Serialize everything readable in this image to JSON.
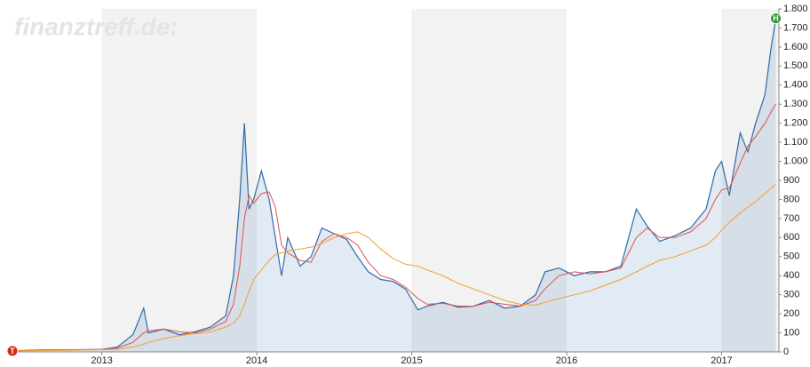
{
  "chart_data": {
    "type": "line",
    "watermark": "finanztreff.de:",
    "x": [
      2012.4,
      2012.6,
      2012.8,
      2013.0,
      2013.1,
      2013.2,
      2013.27,
      2013.3,
      2013.4,
      2013.5,
      2013.6,
      2013.7,
      2013.8,
      2013.85,
      2013.89,
      2013.92,
      2013.95,
      2013.98,
      2014.03,
      2014.08,
      2014.12,
      2014.16,
      2014.2,
      2014.28,
      2014.35,
      2014.42,
      2014.5,
      2014.58,
      2014.65,
      2014.72,
      2014.8,
      2014.88,
      2014.96,
      2015.04,
      2015.1,
      2015.2,
      2015.3,
      2015.4,
      2015.5,
      2015.6,
      2015.7,
      2015.8,
      2015.86,
      2015.95,
      2016.05,
      2016.15,
      2016.25,
      2016.35,
      2016.45,
      2016.52,
      2016.6,
      2016.7,
      2016.8,
      2016.9,
      2016.96,
      2017.0,
      2017.05,
      2017.12,
      2017.17,
      2017.22,
      2017.28,
      2017.32,
      2017.35
    ],
    "series": [
      {
        "color": "#2f6aa8",
        "area": true,
        "values": [
          5,
          10,
          11,
          13,
          25,
          90,
          230,
          100,
          120,
          90,
          105,
          130,
          190,
          400,
          800,
          1200,
          750,
          800,
          950,
          800,
          600,
          400,
          600,
          450,
          500,
          650,
          620,
          590,
          500,
          420,
          380,
          370,
          330,
          220,
          240,
          260,
          235,
          240,
          270,
          230,
          240,
          300,
          420,
          440,
          400,
          420,
          420,
          450,
          750,
          660,
          580,
          610,
          650,
          750,
          950,
          1000,
          820,
          1150,
          1050,
          1200,
          1350,
          1600,
          1750
        ]
      },
      {
        "color": "#e05050",
        "values": [
          5,
          9,
          11,
          13,
          20,
          50,
          100,
          110,
          120,
          105,
          100,
          120,
          160,
          250,
          450,
          700,
          820,
          780,
          830,
          840,
          760,
          560,
          520,
          480,
          470,
          580,
          620,
          600,
          560,
          470,
          400,
          380,
          340,
          280,
          250,
          255,
          240,
          240,
          260,
          250,
          240,
          270,
          330,
          400,
          420,
          410,
          420,
          440,
          600,
          650,
          600,
          600,
          630,
          700,
          800,
          850,
          860,
          990,
          1080,
          1130,
          1200,
          1260,
          1300
        ]
      },
      {
        "color": "#f0a030",
        "values": [
          5,
          7,
          9,
          11,
          14,
          25,
          40,
          50,
          70,
          85,
          95,
          105,
          130,
          150,
          190,
          250,
          320,
          380,
          430,
          480,
          510,
          520,
          530,
          540,
          550,
          570,
          600,
          620,
          630,
          600,
          540,
          490,
          460,
          450,
          430,
          400,
          360,
          330,
          300,
          270,
          250,
          245,
          260,
          280,
          300,
          320,
          350,
          380,
          420,
          450,
          480,
          500,
          530,
          560,
          600,
          640,
          680,
          730,
          760,
          790,
          830,
          860,
          880
        ]
      }
    ],
    "markers": [
      {
        "text": "H",
        "color": "#2e9a2e",
        "series": 0,
        "index": 62
      },
      {
        "text": "T",
        "color": "#d42a1a",
        "series": 0,
        "index": 0
      }
    ],
    "xlim": [
      2012.4,
      2017.37
    ],
    "xticks": [
      2013,
      2014,
      2015,
      2016,
      2017
    ],
    "ylim": [
      0,
      1800
    ],
    "yticks": [
      0,
      100,
      200,
      300,
      400,
      500,
      600,
      700,
      800,
      900,
      {
        "value": 1000,
        "label": "1.000"
      },
      {
        "value": 1100,
        "label": "1.100"
      },
      {
        "value": 1200,
        "label": "1.200"
      },
      {
        "value": 1300,
        "label": "1.300"
      },
      {
        "value": 1400,
        "label": "1.400"
      },
      {
        "value": 1500,
        "label": "1.500"
      },
      {
        "value": 1600,
        "label": "1.600"
      },
      {
        "value": 1700,
        "label": "1.700"
      },
      {
        "value": 1800,
        "label": "1.800"
      }
    ],
    "band_color": "#f2f2f2"
  }
}
